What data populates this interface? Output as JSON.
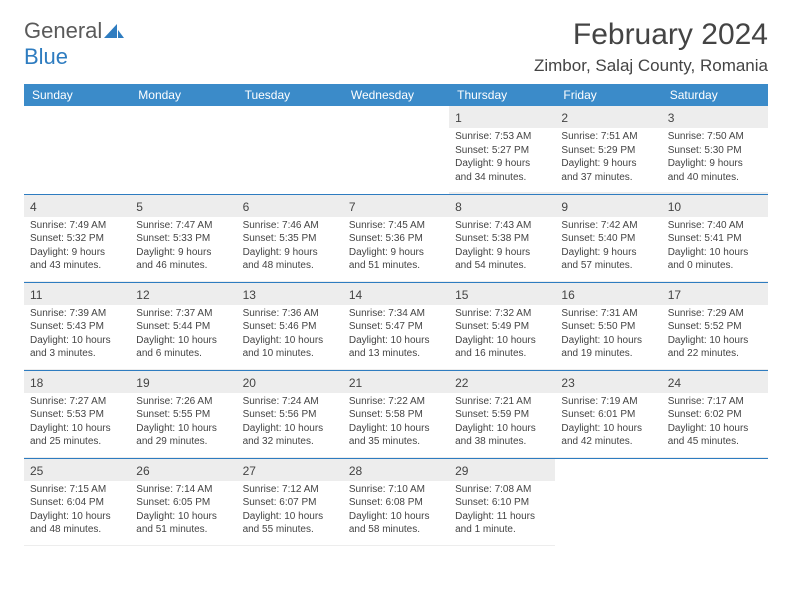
{
  "logo": {
    "text1": "General",
    "text2": "Blue"
  },
  "title": "February 2024",
  "location": "Zimbor, Salaj County, Romania",
  "colors": {
    "header_bg": "#3b8bc9",
    "border": "#2e7cc0",
    "shaded": "#ededed",
    "text": "#444444",
    "logo_gray": "#5a5a5a",
    "logo_blue": "#2e7cc0"
  },
  "weekdays": [
    "Sunday",
    "Monday",
    "Tuesday",
    "Wednesday",
    "Thursday",
    "Friday",
    "Saturday"
  ],
  "weeks": [
    [
      null,
      null,
      null,
      null,
      {
        "n": "1",
        "sr": "7:53 AM",
        "ss": "5:27 PM",
        "dl": "9 hours and 34 minutes."
      },
      {
        "n": "2",
        "sr": "7:51 AM",
        "ss": "5:29 PM",
        "dl": "9 hours and 37 minutes."
      },
      {
        "n": "3",
        "sr": "7:50 AM",
        "ss": "5:30 PM",
        "dl": "9 hours and 40 minutes."
      }
    ],
    [
      {
        "n": "4",
        "sr": "7:49 AM",
        "ss": "5:32 PM",
        "dl": "9 hours and 43 minutes."
      },
      {
        "n": "5",
        "sr": "7:47 AM",
        "ss": "5:33 PM",
        "dl": "9 hours and 46 minutes."
      },
      {
        "n": "6",
        "sr": "7:46 AM",
        "ss": "5:35 PM",
        "dl": "9 hours and 48 minutes."
      },
      {
        "n": "7",
        "sr": "7:45 AM",
        "ss": "5:36 PM",
        "dl": "9 hours and 51 minutes."
      },
      {
        "n": "8",
        "sr": "7:43 AM",
        "ss": "5:38 PM",
        "dl": "9 hours and 54 minutes."
      },
      {
        "n": "9",
        "sr": "7:42 AM",
        "ss": "5:40 PM",
        "dl": "9 hours and 57 minutes."
      },
      {
        "n": "10",
        "sr": "7:40 AM",
        "ss": "5:41 PM",
        "dl": "10 hours and 0 minutes."
      }
    ],
    [
      {
        "n": "11",
        "sr": "7:39 AM",
        "ss": "5:43 PM",
        "dl": "10 hours and 3 minutes."
      },
      {
        "n": "12",
        "sr": "7:37 AM",
        "ss": "5:44 PM",
        "dl": "10 hours and 6 minutes."
      },
      {
        "n": "13",
        "sr": "7:36 AM",
        "ss": "5:46 PM",
        "dl": "10 hours and 10 minutes."
      },
      {
        "n": "14",
        "sr": "7:34 AM",
        "ss": "5:47 PM",
        "dl": "10 hours and 13 minutes."
      },
      {
        "n": "15",
        "sr": "7:32 AM",
        "ss": "5:49 PM",
        "dl": "10 hours and 16 minutes."
      },
      {
        "n": "16",
        "sr": "7:31 AM",
        "ss": "5:50 PM",
        "dl": "10 hours and 19 minutes."
      },
      {
        "n": "17",
        "sr": "7:29 AM",
        "ss": "5:52 PM",
        "dl": "10 hours and 22 minutes."
      }
    ],
    [
      {
        "n": "18",
        "sr": "7:27 AM",
        "ss": "5:53 PM",
        "dl": "10 hours and 25 minutes."
      },
      {
        "n": "19",
        "sr": "7:26 AM",
        "ss": "5:55 PM",
        "dl": "10 hours and 29 minutes."
      },
      {
        "n": "20",
        "sr": "7:24 AM",
        "ss": "5:56 PM",
        "dl": "10 hours and 32 minutes."
      },
      {
        "n": "21",
        "sr": "7:22 AM",
        "ss": "5:58 PM",
        "dl": "10 hours and 35 minutes."
      },
      {
        "n": "22",
        "sr": "7:21 AM",
        "ss": "5:59 PM",
        "dl": "10 hours and 38 minutes."
      },
      {
        "n": "23",
        "sr": "7:19 AM",
        "ss": "6:01 PM",
        "dl": "10 hours and 42 minutes."
      },
      {
        "n": "24",
        "sr": "7:17 AM",
        "ss": "6:02 PM",
        "dl": "10 hours and 45 minutes."
      }
    ],
    [
      {
        "n": "25",
        "sr": "7:15 AM",
        "ss": "6:04 PM",
        "dl": "10 hours and 48 minutes."
      },
      {
        "n": "26",
        "sr": "7:14 AM",
        "ss": "6:05 PM",
        "dl": "10 hours and 51 minutes."
      },
      {
        "n": "27",
        "sr": "7:12 AM",
        "ss": "6:07 PM",
        "dl": "10 hours and 55 minutes."
      },
      {
        "n": "28",
        "sr": "7:10 AM",
        "ss": "6:08 PM",
        "dl": "10 hours and 58 minutes."
      },
      {
        "n": "29",
        "sr": "7:08 AM",
        "ss": "6:10 PM",
        "dl": "11 hours and 1 minute."
      },
      null,
      null
    ]
  ],
  "labels": {
    "sunrise": "Sunrise: ",
    "sunset": "Sunset: ",
    "daylight": "Daylight: "
  }
}
